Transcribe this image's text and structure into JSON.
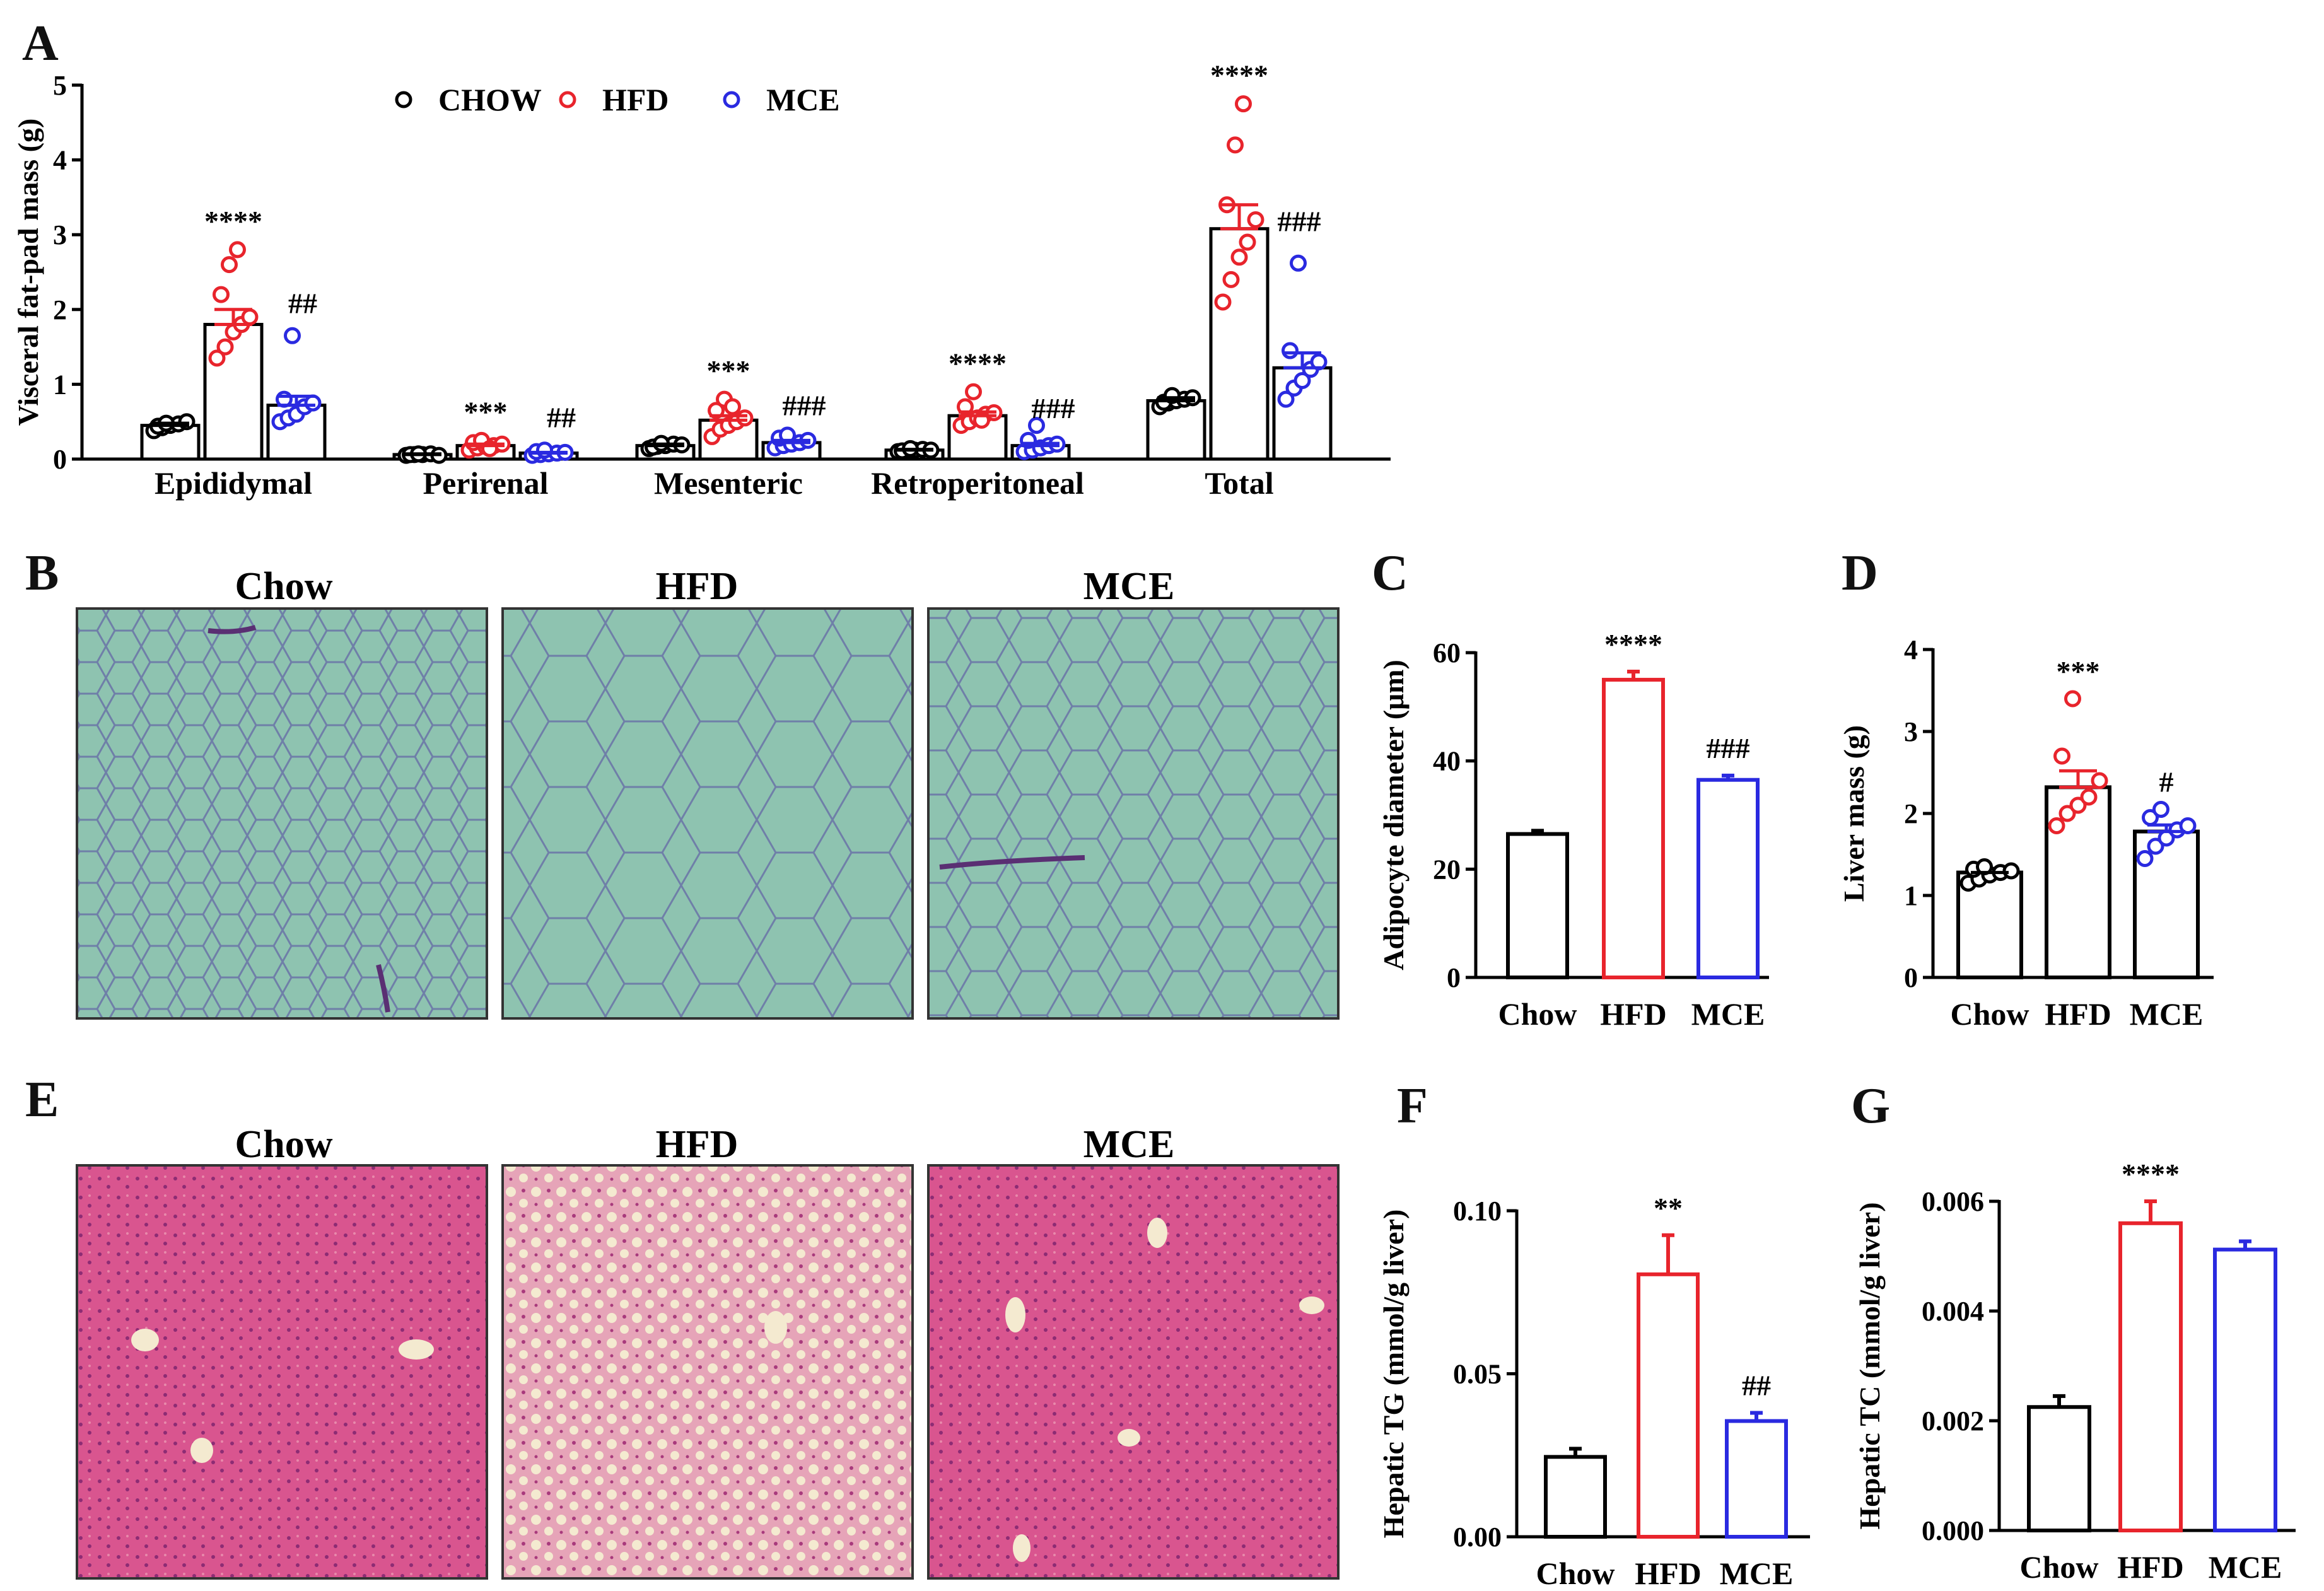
{
  "colors": {
    "chow": "#000000",
    "hfd": "#e8242c",
    "mce": "#2a2ae0",
    "adipose": "#8ec3b0",
    "adipose_line": "#6f7fa8",
    "liver": "#d9558f",
    "liver_dark": "#b13a7a",
    "lipid": "#f4ead0"
  },
  "chart_data": [
    {
      "panel": "A",
      "type": "bar",
      "ylabel": "Visceral fat-pad mass (g)",
      "ylim": [
        0,
        5
      ],
      "yticks": [
        "0",
        "1",
        "2",
        "3",
        "4",
        "5"
      ],
      "categories": [
        "Epididymal",
        "Perirenal",
        "Mesenteric",
        "Retroperitoneal",
        "Total"
      ],
      "legend": [
        "CHOW",
        "HFD",
        "MCE"
      ],
      "series": [
        {
          "name": "CHOW",
          "values": [
            0.45,
            0.06,
            0.18,
            0.12,
            0.78
          ],
          "sem": [
            0.03,
            0.01,
            0.02,
            0.01,
            0.04
          ],
          "points": [
            [
              0.38,
              0.42,
              0.45,
              0.47,
              0.5,
              0.44,
              0.48
            ],
            [
              0.05,
              0.06,
              0.06,
              0.07,
              0.05,
              0.06,
              0.07
            ],
            [
              0.14,
              0.17,
              0.18,
              0.2,
              0.19,
              0.16,
              0.21
            ],
            [
              0.1,
              0.11,
              0.12,
              0.13,
              0.12,
              0.11,
              0.14
            ],
            [
              0.7,
              0.75,
              0.78,
              0.8,
              0.82,
              0.76,
              0.85
            ]
          ]
        },
        {
          "name": "HFD",
          "values": [
            1.8,
            0.18,
            0.52,
            0.58,
            3.08
          ],
          "sem": [
            0.2,
            0.02,
            0.06,
            0.05,
            0.32
          ],
          "points": [
            [
              1.35,
              1.5,
              1.7,
              1.8,
              1.9,
              2.2,
              2.6,
              2.8
            ],
            [
              0.12,
              0.15,
              0.17,
              0.18,
              0.2,
              0.22,
              0.25,
              0.14
            ],
            [
              0.3,
              0.4,
              0.45,
              0.5,
              0.55,
              0.65,
              0.8,
              0.7
            ],
            [
              0.45,
              0.5,
              0.55,
              0.6,
              0.62,
              0.7,
              0.9,
              0.52
            ],
            [
              2.1,
              2.4,
              2.7,
              2.9,
              3.2,
              3.4,
              4.2,
              4.75
            ]
          ]
        },
        {
          "name": "MCE",
          "values": [
            0.72,
            0.08,
            0.22,
            0.18,
            1.22
          ],
          "sem": [
            0.12,
            0.01,
            0.03,
            0.03,
            0.2
          ],
          "points": [
            [
              0.5,
              0.55,
              0.6,
              0.7,
              0.75,
              0.8,
              1.65
            ],
            [
              0.05,
              0.06,
              0.07,
              0.08,
              0.09,
              0.1,
              0.12
            ],
            [
              0.15,
              0.18,
              0.2,
              0.22,
              0.25,
              0.28,
              0.32
            ],
            [
              0.1,
              0.12,
              0.15,
              0.18,
              0.2,
              0.25,
              0.45
            ],
            [
              0.8,
              0.95,
              1.05,
              1.2,
              1.3,
              1.45,
              2.62
            ]
          ]
        }
      ],
      "annotations": [
        {
          "category": "Epididymal",
          "series": "HFD",
          "text": "****"
        },
        {
          "category": "Epididymal",
          "series": "MCE",
          "text": "##"
        },
        {
          "category": "Perirenal",
          "series": "HFD",
          "text": "***"
        },
        {
          "category": "Perirenal",
          "series": "MCE",
          "text": "##"
        },
        {
          "category": "Mesenteric",
          "series": "HFD",
          "text": "***"
        },
        {
          "category": "Mesenteric",
          "series": "MCE",
          "text": "###"
        },
        {
          "category": "Retroperitoneal",
          "series": "HFD",
          "text": "****"
        },
        {
          "category": "Retroperitoneal",
          "series": "MCE",
          "text": "###"
        },
        {
          "category": "Total",
          "series": "HFD",
          "text": "****"
        },
        {
          "category": "Total",
          "series": "MCE",
          "text": "###"
        }
      ]
    },
    {
      "panel": "C",
      "type": "bar",
      "ylabel": "Adipocyte diameter (μm)",
      "ylim": [
        0,
        60
      ],
      "yticks": [
        "0",
        "20",
        "40",
        "60"
      ],
      "categories": [
        "Chow",
        "HFD",
        "MCE"
      ],
      "values": [
        26.5,
        55.0,
        36.5
      ],
      "sem": [
        0.6,
        1.5,
        0.8
      ],
      "annotations": [
        "",
        "****",
        "###"
      ]
    },
    {
      "panel": "D",
      "type": "bar",
      "ylabel": "Liver mass (g)",
      "ylim": [
        0,
        4
      ],
      "yticks": [
        "0",
        "1",
        "2",
        "3",
        "4"
      ],
      "categories": [
        "Chow",
        "HFD",
        "MCE"
      ],
      "values": [
        1.28,
        2.32,
        1.78
      ],
      "sem": [
        0.05,
        0.2,
        0.08
      ],
      "points": [
        [
          1.15,
          1.2,
          1.25,
          1.28,
          1.3,
          1.32,
          1.35
        ],
        [
          1.85,
          2.0,
          2.1,
          2.2,
          2.4,
          2.7,
          3.4
        ],
        [
          1.45,
          1.6,
          1.7,
          1.8,
          1.85,
          1.95,
          2.05
        ]
      ],
      "annotations": [
        "",
        "***",
        "#"
      ]
    },
    {
      "panel": "F",
      "type": "bar",
      "ylabel": "Hepatic TG (mmol/g liver)",
      "ylim": [
        0,
        0.1
      ],
      "yticks": [
        "0.00",
        "0.05",
        "0.10"
      ],
      "categories": [
        "Chow",
        "HFD",
        "MCE"
      ],
      "values": [
        0.0245,
        0.0805,
        0.0355
      ],
      "sem": [
        0.0025,
        0.012,
        0.0025
      ],
      "annotations": [
        "",
        "**",
        "##"
      ]
    },
    {
      "panel": "G",
      "type": "bar",
      "ylabel": "Hepatic TC (mmol/g liver)",
      "ylim": [
        0,
        0.006
      ],
      "yticks": [
        "0.000",
        "0.002",
        "0.004",
        "0.006"
      ],
      "categories": [
        "Chow",
        "HFD",
        "MCE"
      ],
      "values": [
        0.00225,
        0.0056,
        0.00512
      ],
      "sem": [
        0.0002,
        0.0004,
        0.00015
      ],
      "annotations": [
        "",
        "****",
        ""
      ]
    }
  ],
  "panels": {
    "A": "A",
    "B": "B",
    "C": "C",
    "D": "D",
    "E": "E",
    "F": "F",
    "G": "G"
  },
  "micrographs": {
    "adipose_titles": [
      "Chow",
      "HFD",
      "MCE"
    ],
    "liver_titles": [
      "Chow",
      "HFD",
      "MCE"
    ]
  }
}
